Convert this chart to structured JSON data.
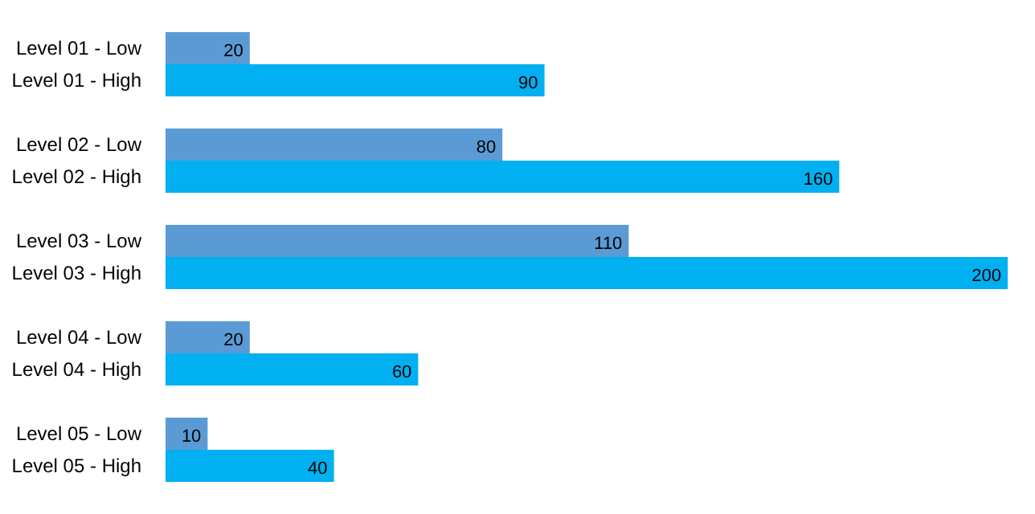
{
  "chart_data": {
    "type": "bar",
    "orientation": "horizontal",
    "data_labels": true,
    "categories": [
      "Level 01 - Low",
      "Level 01 - High",
      null,
      "Level 02 - Low",
      "Level 02 - High",
      null,
      "Level 03 - Low",
      "Level 03 - High",
      null,
      "Level 04 - Low",
      "Level 04 - High",
      null,
      "Level 05 - Low",
      "Level 05 - High"
    ],
    "values": [
      20,
      90,
      null,
      80,
      160,
      null,
      110,
      200,
      null,
      20,
      60,
      null,
      10,
      40
    ],
    "colors": [
      "#5b9bd5",
      "#00b0f0",
      null,
      "#5b9bd5",
      "#00b0f0",
      null,
      "#5b9bd5",
      "#00b0f0",
      null,
      "#5b9bd5",
      "#00b0f0",
      null,
      "#5b9bd5",
      "#00b0f0"
    ]
  }
}
